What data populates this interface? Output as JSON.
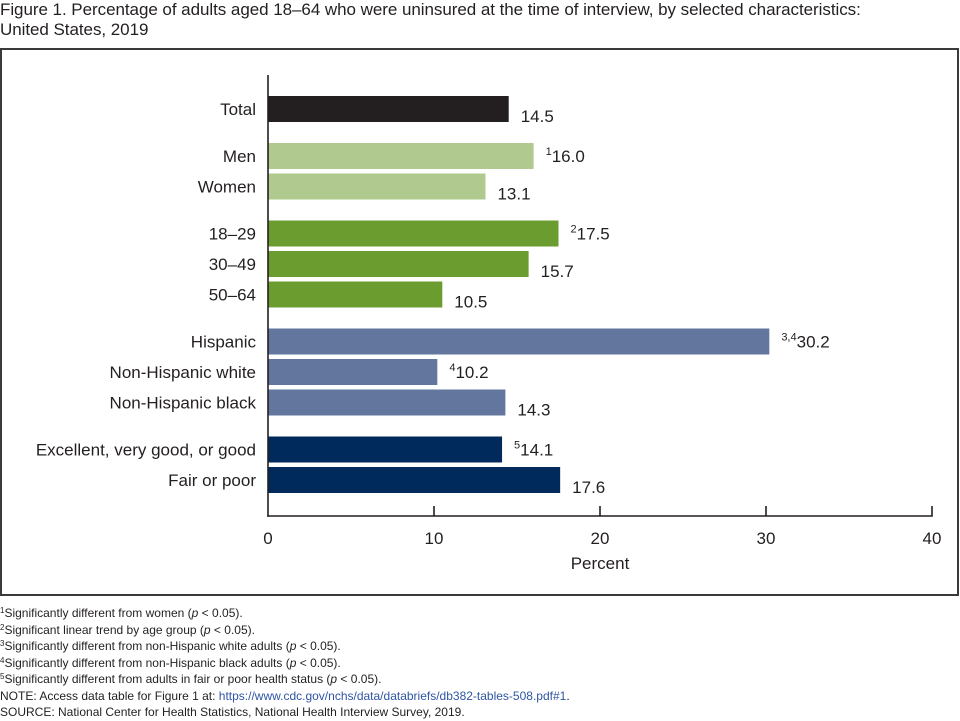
{
  "figure": {
    "title_line1": "Figure 1. Percentage of adults aged 18–64 who were uninsured at the time of interview, by selected characteristics:",
    "title_line2": "United States, 2019"
  },
  "chart_data": {
    "type": "bar",
    "orientation": "horizontal",
    "title": "Percentage of adults aged 18–64 who were uninsured at the time of interview, by selected characteristics: United States, 2019",
    "xlabel": "Percent",
    "ylabel": "",
    "xlim": [
      0,
      40
    ],
    "xticks": [
      0,
      10,
      20,
      30,
      40
    ],
    "xtick_labels": [
      "0",
      "10",
      "20",
      "30",
      "40"
    ],
    "grid": false,
    "legend": "none",
    "categories": [
      "Total",
      "Men",
      "Women",
      "18–29",
      "30–49",
      "50–64",
      "Hispanic",
      "Non-Hispanic white",
      "Non-Hispanic black",
      "Excellent, very good, or good",
      "Fair or poor"
    ],
    "values": [
      14.5,
      16.0,
      13.1,
      17.5,
      15.7,
      10.5,
      30.2,
      10.2,
      14.3,
      14.1,
      17.6
    ],
    "value_labels": [
      "14.5",
      "16.0",
      "13.1",
      "17.5",
      "15.7",
      "10.5",
      "30.2",
      "10.2",
      "14.3",
      "14.1",
      "17.6"
    ],
    "superscripts": [
      "",
      "1",
      "",
      "2",
      "",
      "",
      "3,4",
      "4",
      "",
      "5",
      ""
    ],
    "group": [
      0,
      1,
      1,
      2,
      2,
      2,
      3,
      3,
      3,
      4,
      4
    ],
    "group_colors": [
      "#231f20",
      "#afc98e",
      "#6b9c30",
      "#62769e",
      "#002a5c"
    ]
  },
  "footnotes": [
    {
      "marker": "1",
      "before": "Significantly different from women (",
      "italic": "p",
      "after": " < 0.05)."
    },
    {
      "marker": "2",
      "before": "Significant linear trend by age group (",
      "italic": "p",
      "after": " < 0.05)."
    },
    {
      "marker": "3",
      "before": "Significantly different from non-Hispanic white adults (",
      "italic": "p",
      "after": " < 0.05)."
    },
    {
      "marker": "4",
      "before": "Significantly different from non-Hispanic black adults (",
      "italic": "p",
      "after": " < 0.05)."
    },
    {
      "marker": "5",
      "before": "Significantly different from adults in fair or poor health status (",
      "italic": "p",
      "after": " < 0.05)."
    }
  ],
  "note": {
    "label": "NOTE: Access data table for Figure 1 at: ",
    "link_text": "https://www.cdc.gov/nchs/data/databriefs/db382-tables-508.pdf#1",
    "trailing": ".",
    "link_color": "#2f55a4"
  },
  "source": "SOURCE: National Center for Health Statistics, National Health Interview Survey, 2019."
}
